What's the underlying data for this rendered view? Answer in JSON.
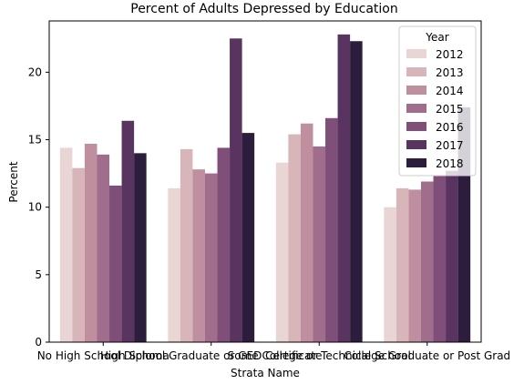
{
  "chart_data": {
    "type": "bar",
    "title": "Percent of Adults Depressed by Education",
    "xlabel": "Strata Name",
    "ylabel": "Percent",
    "ylim": [
      0,
      23.8
    ],
    "yticks": [
      0,
      5,
      10,
      15,
      20
    ],
    "grid": false,
    "legend_title": "Year",
    "legend_position": "top-right",
    "categories": [
      "No High School Diploma",
      "High School Graduate or GED Certificate",
      "Some College or Technical School",
      "College Graduate or Post Grad"
    ],
    "series": [
      {
        "name": "2012",
        "color": "#e8d5d4",
        "values": [
          14.4,
          11.4,
          13.3,
          10.0
        ]
      },
      {
        "name": "2013",
        "color": "#d7b5b9",
        "values": [
          12.9,
          14.3,
          15.4,
          11.4
        ]
      },
      {
        "name": "2014",
        "color": "#bf8fa0",
        "values": [
          14.7,
          12.8,
          16.2,
          11.3
        ]
      },
      {
        "name": "2015",
        "color": "#a06d8c",
        "values": [
          13.9,
          12.5,
          14.5,
          11.9
        ]
      },
      {
        "name": "2016",
        "color": "#7f4f7a",
        "values": [
          11.6,
          14.4,
          16.6,
          12.3
        ]
      },
      {
        "name": "2017",
        "color": "#5a3460",
        "values": [
          16.4,
          22.5,
          22.8,
          12.7
        ]
      },
      {
        "name": "2018",
        "color": "#2c1d3d",
        "values": [
          14.0,
          15.5,
          22.3,
          17.4
        ]
      }
    ]
  }
}
